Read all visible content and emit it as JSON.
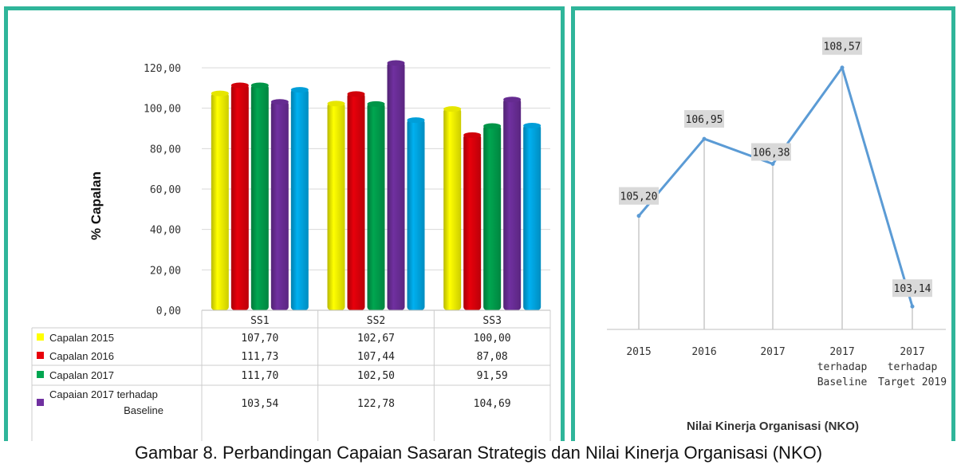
{
  "caption": "Gambar 8. Perbandingan Capaian Sasaran Strategis dan Nilai Kinerja Organisasi (NKO)",
  "chart_data": [
    {
      "type": "bar",
      "ylabel": "% Capalan",
      "ylim": [
        0,
        120
      ],
      "yticks": [
        "0,00",
        "20,00",
        "40,00",
        "60,00",
        "80,00",
        "100,00",
        "120,00"
      ],
      "categories": [
        "SS1",
        "SS2",
        "SS3"
      ],
      "legend_placement": "data-table-below",
      "series": [
        {
          "name": "Capalan 2015",
          "color": "#ffff00",
          "values": [
            107.7,
            102.67,
            100.0
          ],
          "labels": [
            "107,70",
            "102,67",
            "100,00"
          ]
        },
        {
          "name": "Capalan 2016",
          "color": "#e8000b",
          "values": [
            111.73,
            107.44,
            87.08
          ],
          "labels": [
            "111,73",
            "107,44",
            "87,08"
          ]
        },
        {
          "name": "Capalan 2017",
          "color": "#00a650",
          "values": [
            111.7,
            102.5,
            91.59
          ],
          "labels": [
            "111,70",
            "102,50",
            "91,59"
          ]
        },
        {
          "name": "Capaian 2017 terhadap Baseline",
          "color": "#7030a0",
          "values": [
            103.54,
            122.78,
            104.69
          ],
          "labels": [
            "103,54",
            "122,78",
            "104,69"
          ]
        },
        {
          "name": "",
          "color": "#00b0f0",
          "values": [
            109.5,
            94.5,
            91.8
          ],
          "labels": []
        }
      ],
      "grid": true
    },
    {
      "type": "line",
      "xlabel": "Nilai Kinerja Organisasi (NKO)",
      "categories": [
        "2015",
        "2016",
        "2017",
        "2017 terhadap Baseline",
        "2017 terhadap Target 2019"
      ],
      "category_lines": [
        [
          "2015"
        ],
        [
          "2016"
        ],
        [
          "2017"
        ],
        [
          "2017",
          "terhadap",
          "Baseline"
        ],
        [
          "2017",
          "terhadap",
          "Target 2019"
        ]
      ],
      "values": [
        105.2,
        106.95,
        106.38,
        108.57,
        103.14
      ],
      "labels": [
        "105,20",
        "106,95",
        "106,38",
        "108,57",
        "103,14"
      ],
      "ylim": [
        102.8,
        109
      ],
      "color": "#5b9bd5",
      "grid": false
    }
  ]
}
